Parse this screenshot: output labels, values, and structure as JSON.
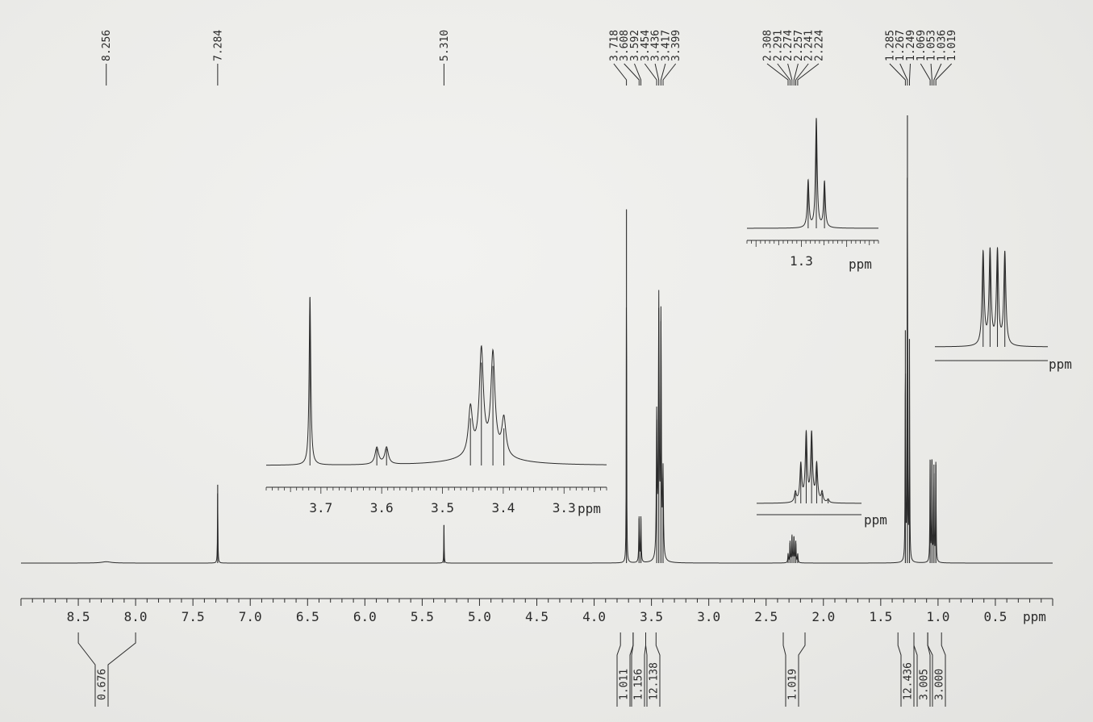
{
  "chart_data": [
    {
      "type": "line",
      "subtype": "1H NMR spectrum",
      "x_unit": "ppm",
      "xlim": [
        9.0,
        0.0
      ],
      "x_axis_reversed": true,
      "x_ticks": [
        "8.5",
        "8.0",
        "7.5",
        "7.0",
        "6.5",
        "6.0",
        "5.5",
        "5.0",
        "4.5",
        "4.0",
        "3.5",
        "3.0",
        "2.5",
        "2.0",
        "1.5",
        "1.0",
        "0.5"
      ],
      "x_tick_values": [
        8.5,
        8.0,
        7.5,
        7.0,
        6.5,
        6.0,
        5.5,
        5.0,
        4.5,
        4.0,
        3.5,
        3.0,
        2.5,
        2.0,
        1.5,
        1.0,
        0.5
      ],
      "unit_label": "ppm",
      "peak_labels": [
        "8.256",
        "7.284",
        "5.310",
        "3.718",
        "3.608",
        "3.592",
        "3.454",
        "3.436",
        "3.417",
        "3.399",
        "2.308",
        "2.291",
        "2.274",
        "2.257",
        "2.241",
        "2.224",
        "1.285",
        "1.267",
        "1.249",
        "1.069",
        "1.053",
        "1.036",
        "1.019"
      ],
      "peak_values": [
        8.256,
        7.284,
        5.31,
        3.718,
        3.608,
        3.592,
        3.454,
        3.436,
        3.417,
        3.399,
        2.308,
        2.291,
        2.274,
        2.257,
        2.241,
        2.224,
        1.285,
        1.267,
        1.249,
        1.069,
        1.053,
        1.036,
        1.019
      ],
      "peak_groups": [
        [
          0
        ],
        [
          1
        ],
        [
          2
        ],
        [
          3,
          4,
          5,
          6,
          7,
          8,
          9
        ],
        [
          10,
          11,
          12,
          13,
          14,
          15
        ],
        [
          16,
          17,
          18,
          19,
          20,
          21,
          22
        ]
      ],
      "integrals": [
        {
          "label": "0.676",
          "from": 8.5,
          "to": 8.0
        },
        {
          "label": "1.011",
          "from": 3.77,
          "to": 3.66
        },
        {
          "label": "1.156",
          "from": 3.66,
          "to": 3.55
        },
        {
          "label": "12.138",
          "from": 3.55,
          "to": 3.46
        },
        {
          "label": "1.019",
          "from": 2.35,
          "to": 2.16
        },
        {
          "label": "12.436",
          "from": 1.35,
          "to": 1.21
        },
        {
          "label": "3.005",
          "from": 1.21,
          "to": 1.09
        },
        {
          "label": "3.000",
          "from": 1.09,
          "to": 0.97
        }
      ],
      "peaks": [
        {
          "shift": 8.256,
          "height": 0.003,
          "width": 0.05
        },
        {
          "shift": 7.284,
          "height": 0.175,
          "width": 0.002
        },
        {
          "shift": 5.31,
          "height": 0.085,
          "width": 0.002
        },
        {
          "shift": 3.718,
          "height": 0.79,
          "width": 0.0018
        },
        {
          "shift": 3.608,
          "height": 0.1,
          "width": 0.003
        },
        {
          "shift": 3.592,
          "height": 0.1,
          "width": 0.003
        },
        {
          "shift": 3.454,
          "height": 0.32,
          "width": 0.004
        },
        {
          "shift": 3.436,
          "height": 0.57,
          "width": 0.004
        },
        {
          "shift": 3.417,
          "height": 0.54,
          "width": 0.004
        },
        {
          "shift": 3.399,
          "height": 0.19,
          "width": 0.004
        },
        {
          "shift": 2.308,
          "height": 0.02,
          "width": 0.003
        },
        {
          "shift": 2.291,
          "height": 0.05,
          "width": 0.003
        },
        {
          "shift": 2.274,
          "height": 0.06,
          "width": 0.003
        },
        {
          "shift": 2.257,
          "height": 0.06,
          "width": 0.003
        },
        {
          "shift": 2.241,
          "height": 0.05,
          "width": 0.003
        },
        {
          "shift": 2.224,
          "height": 0.02,
          "width": 0.003
        },
        {
          "shift": 1.285,
          "height": 0.52,
          "width": 0.0022
        },
        {
          "shift": 1.267,
          "height": 1.0,
          "width": 0.0022
        },
        {
          "shift": 1.249,
          "height": 0.5,
          "width": 0.0022
        },
        {
          "shift": 1.069,
          "height": 0.23,
          "width": 0.0025
        },
        {
          "shift": 1.053,
          "height": 0.23,
          "width": 0.0025
        },
        {
          "shift": 1.036,
          "height": 0.22,
          "width": 0.0025
        },
        {
          "shift": 1.019,
          "height": 0.22,
          "width": 0.0025
        }
      ]
    },
    {
      "type": "line",
      "subtype": "inset expansion",
      "xlim": [
        3.79,
        3.23
      ],
      "x_ticks": [
        "3.7",
        "3.6",
        "3.5",
        "3.4",
        "3.3"
      ],
      "x_tick_values": [
        3.7,
        3.6,
        3.5,
        3.4,
        3.3
      ],
      "unit_label": "ppm",
      "peaks": [
        {
          "shift": 3.718,
          "height": 1.0,
          "width": 0.0016
        },
        {
          "shift": 3.608,
          "height": 0.1,
          "width": 0.0035
        },
        {
          "shift": 3.592,
          "height": 0.1,
          "width": 0.0035
        },
        {
          "shift": 3.454,
          "height": 0.28,
          "width": 0.004
        },
        {
          "shift": 3.436,
          "height": 0.61,
          "width": 0.004
        },
        {
          "shift": 3.417,
          "height": 0.59,
          "width": 0.004
        },
        {
          "shift": 3.399,
          "height": 0.22,
          "width": 0.004
        }
      ],
      "hump": {
        "center": 3.43,
        "height": 0.06,
        "width": 0.05
      }
    },
    {
      "type": "line",
      "subtype": "inset expansion",
      "xlim": [
        2.43,
        2.1
      ],
      "x_ticks": [],
      "unit_label": "ppm",
      "peaks": [
        {
          "shift": 2.308,
          "height": 0.15,
          "width": 0.0035
        },
        {
          "shift": 2.291,
          "height": 0.55,
          "width": 0.0035
        },
        {
          "shift": 2.274,
          "height": 1.0,
          "width": 0.0035
        },
        {
          "shift": 2.257,
          "height": 1.0,
          "width": 0.0035
        },
        {
          "shift": 2.241,
          "height": 0.55,
          "width": 0.0035
        },
        {
          "shift": 2.224,
          "height": 0.15,
          "width": 0.0035
        },
        {
          "shift": 2.205,
          "height": 0.05,
          "width": 0.0035
        }
      ]
    },
    {
      "type": "line",
      "subtype": "inset expansion",
      "xlim": [
        1.42,
        1.13
      ],
      "x_ticks": [
        "1.3"
      ],
      "x_tick_values": [
        1.3
      ],
      "unit_label": "ppm",
      "peaks": [
        {
          "shift": 1.285,
          "height": 0.43,
          "width": 0.0022
        },
        {
          "shift": 1.267,
          "height": 1.0,
          "width": 0.0022
        },
        {
          "shift": 1.249,
          "height": 0.42,
          "width": 0.0022
        }
      ]
    },
    {
      "type": "line",
      "subtype": "inset expansion",
      "xlim": [
        1.18,
        0.92
      ],
      "x_ticks": [],
      "unit_label": "ppm",
      "peaks": [
        {
          "shift": 1.069,
          "height": 0.99,
          "width": 0.0028
        },
        {
          "shift": 1.053,
          "height": 1.0,
          "width": 0.0028
        },
        {
          "shift": 1.036,
          "height": 1.0,
          "width": 0.0028
        },
        {
          "shift": 1.019,
          "height": 0.99,
          "width": 0.0028
        }
      ]
    }
  ]
}
